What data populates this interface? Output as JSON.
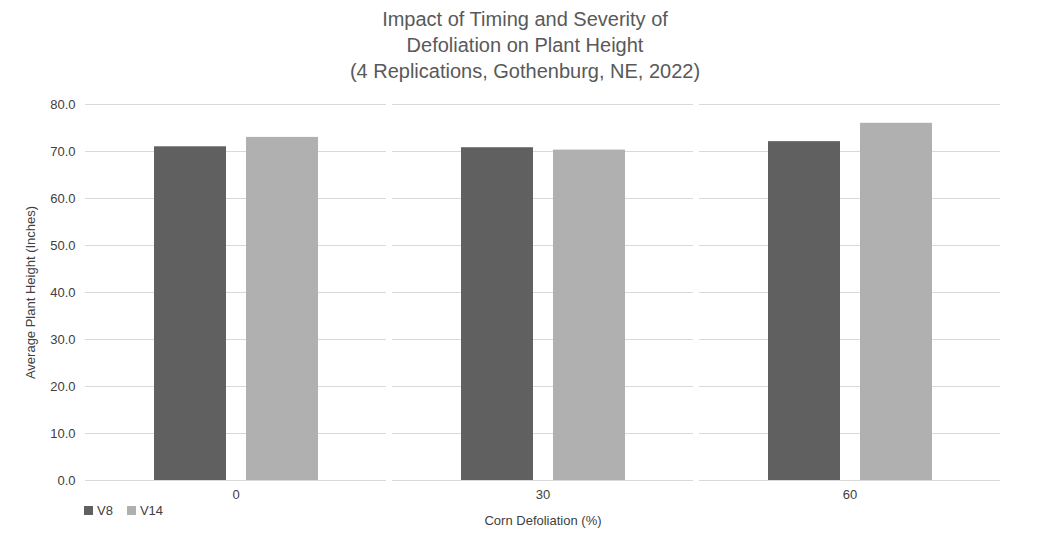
{
  "chart_data": {
    "type": "bar",
    "title": "Impact of Timing and Severity of Defoliation on Plant Height",
    "subtitle": "(4 Replications, Gothenburg, NE, 2022)",
    "x_label": "Corn Defoliation (%)",
    "y_label": "Average Plant Height (Inches)",
    "categories": [
      "0",
      "30",
      "60"
    ],
    "series": [
      {
        "name": "V8",
        "color": "#5f605f",
        "values": [
          71.0,
          70.8,
          72.1
        ]
      },
      {
        "name": "V14",
        "color": "#b0b0b0",
        "values": [
          73.0,
          70.3,
          76.0
        ]
      }
    ],
    "ylim": [
      0,
      80
    ],
    "yticks": [
      {
        "value": 0,
        "label": "0.0"
      },
      {
        "value": 10,
        "label": "10.0"
      },
      {
        "value": 20,
        "label": "20.0"
      },
      {
        "value": 30,
        "label": "30.0"
      },
      {
        "value": 40,
        "label": "40.0"
      },
      {
        "value": 50,
        "label": "50.0"
      },
      {
        "value": 60,
        "label": "60.0"
      },
      {
        "value": 70,
        "label": "70.0"
      },
      {
        "value": 80,
        "label": "80.0"
      }
    ],
    "grid": true,
    "legend": "bottom-left"
  }
}
